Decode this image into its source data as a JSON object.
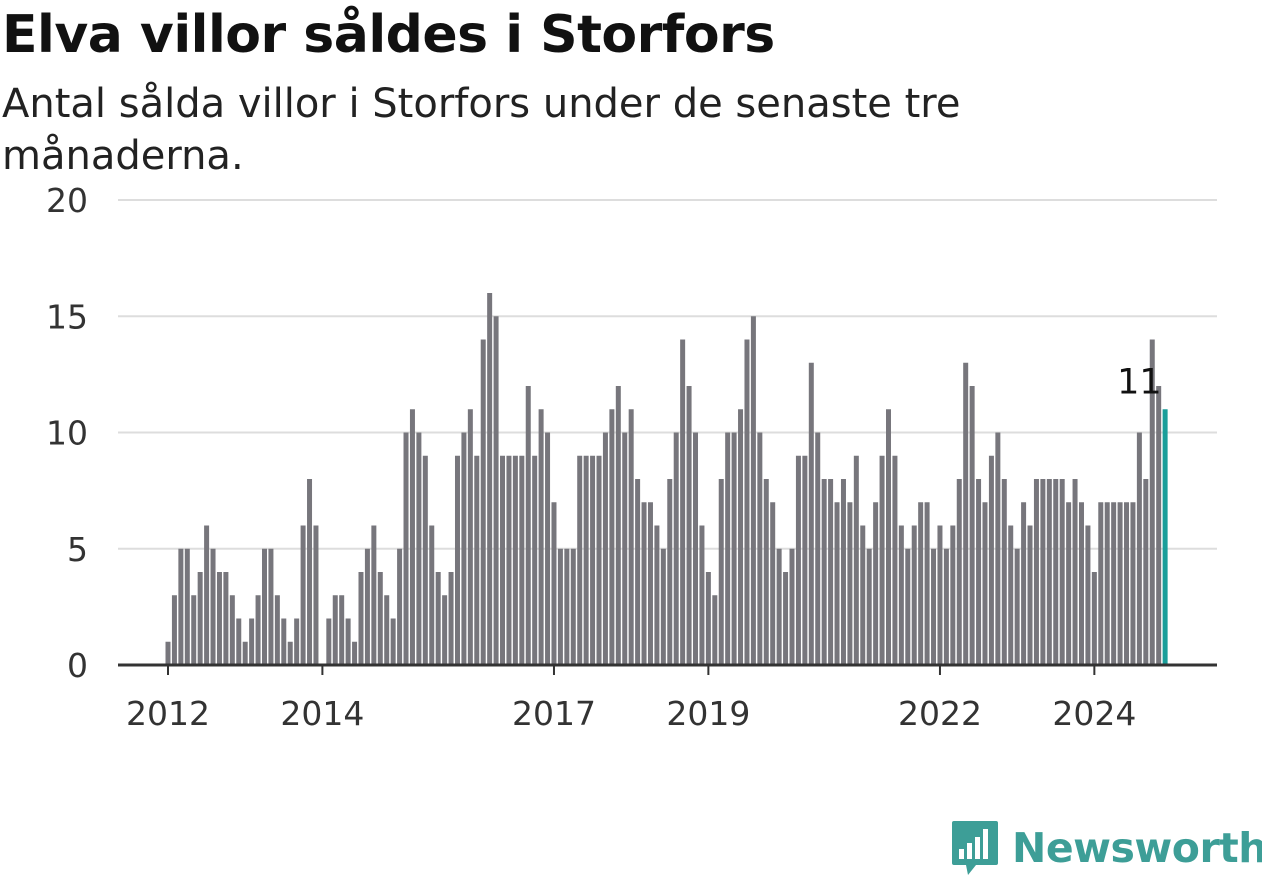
{
  "title": "Elva villor såldes i Storfors",
  "subtitle": "Antal sålda villor i Storfors under de senaste tre månaderna.",
  "brand": "Newsworthy",
  "colors": {
    "bar": "#77767c",
    "highlight": "#1a9e9a",
    "brand": "#3d9e97",
    "grid": "#dddddd",
    "axis": "#333333"
  },
  "chart_data": {
    "type": "bar",
    "title": "Elva villor såldes i Storfors",
    "subtitle": "Antal sålda villor i Storfors under de senaste tre månaderna.",
    "xlabel": "",
    "ylabel": "",
    "ylim": [
      0,
      20
    ],
    "y_ticks": [
      0,
      5,
      10,
      15,
      20
    ],
    "x_ticks": [
      "2012",
      "2014",
      "2017",
      "2019",
      "2022",
      "2024"
    ],
    "x_tick_months": [
      "2012-01",
      "2014-01",
      "2017-01",
      "2019-01",
      "2022-01",
      "2024-01"
    ],
    "grid": true,
    "x_start": "2012-01",
    "x_end": "2024-08",
    "annotation": {
      "label": "11",
      "month": "2024-08",
      "value": 11
    },
    "series": [
      {
        "values": [
          1,
          3,
          5,
          5,
          3,
          4,
          6,
          5,
          4,
          4,
          3,
          2,
          1,
          2,
          3,
          5,
          5,
          3,
          2,
          1,
          2,
          6,
          8,
          6,
          0,
          2,
          3,
          3,
          2,
          1,
          4,
          5,
          6,
          4,
          3,
          2,
          5,
          10,
          11,
          10,
          9,
          6,
          4,
          3,
          4,
          9,
          10,
          11,
          9,
          14,
          16,
          15,
          9,
          9,
          9,
          9,
          12,
          9,
          11,
          10,
          7,
          5,
          5,
          5,
          9,
          9,
          9,
          9,
          10,
          11,
          12,
          10,
          11,
          8,
          7,
          7,
          6,
          5,
          8,
          10,
          14,
          12,
          10,
          6,
          4,
          3,
          8,
          10,
          10,
          11,
          14,
          15,
          10,
          8,
          7,
          5,
          4,
          5,
          9,
          9,
          13,
          10,
          8,
          8,
          7,
          8,
          7,
          9,
          6,
          5,
          7,
          9,
          11,
          9,
          6,
          5,
          6,
          7,
          7,
          5,
          6,
          5,
          6,
          8,
          13,
          12,
          8,
          7,
          9,
          10,
          8,
          6,
          5,
          7,
          6,
          8,
          8,
          8,
          8,
          8,
          7,
          8,
          7,
          6,
          4,
          7,
          7,
          7,
          7,
          7,
          7,
          10,
          8,
          14,
          12,
          11
        ]
      }
    ]
  }
}
